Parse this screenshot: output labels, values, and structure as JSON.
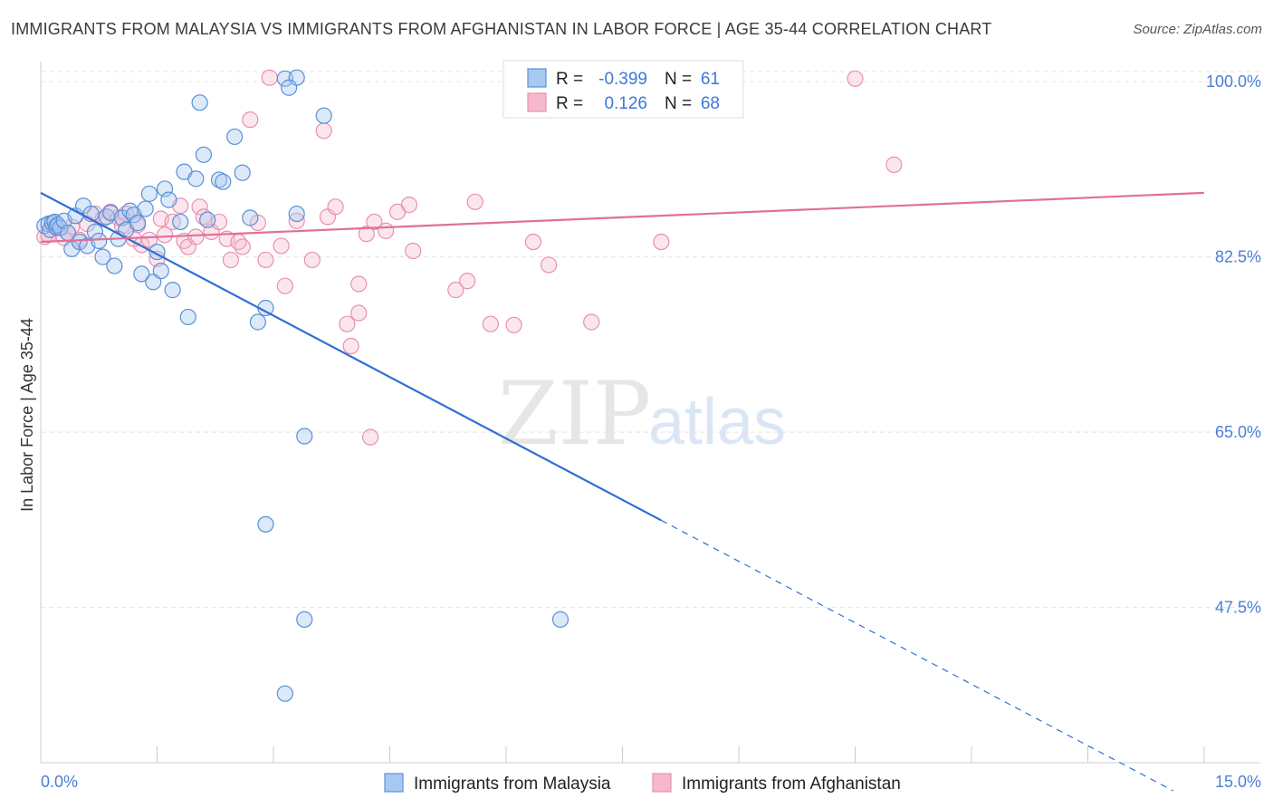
{
  "header": {
    "title": "IMMIGRANTS FROM MALAYSIA VS IMMIGRANTS FROM AFGHANISTAN IN LABOR FORCE | AGE 35-44 CORRELATION CHART",
    "source": "Source: ZipAtlas.com"
  },
  "watermark": {
    "zip": "ZIP",
    "atlas": "atlas"
  },
  "legend": {
    "malaysia": {
      "r_label": "R =",
      "r_value": "-0.399",
      "n_label": "N =",
      "n_value": "61"
    },
    "afghanistan": {
      "r_label": "R =",
      "r_value": "0.126",
      "n_label": "N =",
      "n_value": "68"
    }
  },
  "chart_data": {
    "type": "scatter",
    "ylabel": "In Labor Force | Age 35-44",
    "xlim": [
      0,
      15
    ],
    "ylim": [
      32,
      102
    ],
    "x_tick_labels": [
      "0.0%",
      "15.0%"
    ],
    "y_ticks": [
      {
        "value": 100,
        "label": "100.0%"
      },
      {
        "value": 82.5,
        "label": "82.5%"
      },
      {
        "value": 65,
        "label": "65.0%"
      },
      {
        "value": 47.5,
        "label": "47.5%"
      }
    ],
    "colors": {
      "malaysia_fill": "#a8c8f0",
      "malaysia_stroke": "#5b8fd8",
      "malaysia_line": "#2f6fd6",
      "afghanistan_fill": "#f5b8cc",
      "afghanistan_stroke": "#e890ad",
      "afghanistan_line": "#e0709a"
    },
    "series": [
      {
        "name": "Immigrants from Malaysia",
        "points": [
          [
            0.05,
            85.6
          ],
          [
            0.1,
            85.8
          ],
          [
            0.12,
            85.2
          ],
          [
            0.15,
            85.9
          ],
          [
            0.18,
            86.0
          ],
          [
            0.2,
            85.5
          ],
          [
            0.22,
            85.7
          ],
          [
            0.25,
            85.4
          ],
          [
            0.3,
            86.1
          ],
          [
            0.35,
            84.9
          ],
          [
            0.4,
            83.3
          ],
          [
            0.45,
            86.6
          ],
          [
            0.5,
            84.0
          ],
          [
            0.55,
            87.6
          ],
          [
            0.6,
            83.6
          ],
          [
            0.65,
            86.8
          ],
          [
            0.7,
            85.0
          ],
          [
            0.75,
            84.1
          ],
          [
            0.8,
            82.5
          ],
          [
            0.85,
            86.5
          ],
          [
            0.9,
            86.9
          ],
          [
            0.95,
            81.6
          ],
          [
            1.0,
            84.3
          ],
          [
            1.05,
            86.4
          ],
          [
            1.1,
            85.2
          ],
          [
            1.15,
            87.1
          ],
          [
            1.2,
            86.7
          ],
          [
            1.25,
            85.9
          ],
          [
            1.3,
            80.8
          ],
          [
            1.35,
            87.3
          ],
          [
            1.4,
            88.8
          ],
          [
            1.45,
            80.0
          ],
          [
            1.5,
            83.0
          ],
          [
            1.55,
            81.1
          ],
          [
            1.6,
            89.3
          ],
          [
            1.65,
            88.2
          ],
          [
            1.7,
            79.2
          ],
          [
            1.8,
            86.0
          ],
          [
            1.85,
            91.0
          ],
          [
            1.9,
            76.5
          ],
          [
            2.0,
            90.3
          ],
          [
            2.05,
            97.9
          ],
          [
            2.1,
            92.7
          ],
          [
            2.15,
            86.2
          ],
          [
            2.3,
            90.2
          ],
          [
            2.35,
            90.0
          ],
          [
            2.5,
            94.5
          ],
          [
            2.6,
            90.9
          ],
          [
            2.7,
            86.4
          ],
          [
            2.8,
            76.0
          ],
          [
            2.9,
            77.4
          ],
          [
            2.9,
            55.8
          ],
          [
            3.15,
            100.3
          ],
          [
            3.3,
            100.4
          ],
          [
            3.15,
            38.9
          ],
          [
            3.2,
            99.4
          ],
          [
            3.3,
            86.8
          ],
          [
            3.65,
            96.6
          ],
          [
            3.4,
            64.6
          ],
          [
            3.4,
            46.3
          ],
          [
            6.7,
            46.3
          ]
        ]
      },
      {
        "name": "Immigrants from Afghanistan",
        "points": [
          [
            0.05,
            84.5
          ],
          [
            0.1,
            84.7
          ],
          [
            0.15,
            85.9
          ],
          [
            0.2,
            85.4
          ],
          [
            0.3,
            84.4
          ],
          [
            0.35,
            84.9
          ],
          [
            0.4,
            85.5
          ],
          [
            0.5,
            84.2
          ],
          [
            0.6,
            85.8
          ],
          [
            0.7,
            86.8
          ],
          [
            0.8,
            86.3
          ],
          [
            0.9,
            87.0
          ],
          [
            1.0,
            86.4
          ],
          [
            1.05,
            85.6
          ],
          [
            1.1,
            86.8
          ],
          [
            1.2,
            84.3
          ],
          [
            1.25,
            85.7
          ],
          [
            1.3,
            83.7
          ],
          [
            1.4,
            84.2
          ],
          [
            1.5,
            82.3
          ],
          [
            1.55,
            86.3
          ],
          [
            1.6,
            84.7
          ],
          [
            1.7,
            86.0
          ],
          [
            1.8,
            87.6
          ],
          [
            1.85,
            84.1
          ],
          [
            1.9,
            83.5
          ],
          [
            2.0,
            84.5
          ],
          [
            2.05,
            87.5
          ],
          [
            2.1,
            86.5
          ],
          [
            2.2,
            85.0
          ],
          [
            2.3,
            86.0
          ],
          [
            2.4,
            84.3
          ],
          [
            2.45,
            82.2
          ],
          [
            2.55,
            84.0
          ],
          [
            2.6,
            83.5
          ],
          [
            2.7,
            96.2
          ],
          [
            2.8,
            85.9
          ],
          [
            2.9,
            82.2
          ],
          [
            2.95,
            100.4
          ],
          [
            3.1,
            83.6
          ],
          [
            3.15,
            79.6
          ],
          [
            3.3,
            86.1
          ],
          [
            3.5,
            82.2
          ],
          [
            3.65,
            95.1
          ],
          [
            3.7,
            86.5
          ],
          [
            3.8,
            87.5
          ],
          [
            3.95,
            75.8
          ],
          [
            4.0,
            73.6
          ],
          [
            4.1,
            79.8
          ],
          [
            4.1,
            76.9
          ],
          [
            4.2,
            84.8
          ],
          [
            4.25,
            64.5
          ],
          [
            4.3,
            86.0
          ],
          [
            4.45,
            85.1
          ],
          [
            4.6,
            87.0
          ],
          [
            4.75,
            87.7
          ],
          [
            4.8,
            83.1
          ],
          [
            5.35,
            79.2
          ],
          [
            5.5,
            80.1
          ],
          [
            5.6,
            88.0
          ],
          [
            5.8,
            75.8
          ],
          [
            6.1,
            75.7
          ],
          [
            6.35,
            84.0
          ],
          [
            6.55,
            81.7
          ],
          [
            7.1,
            76.0
          ],
          [
            8.0,
            84.0
          ],
          [
            10.5,
            100.3
          ],
          [
            11.0,
            91.7
          ]
        ]
      }
    ],
    "trendlines": [
      {
        "series": "Immigrants from Malaysia",
        "x": [
          0,
          8.0
        ],
        "y": [
          88.9,
          56.2
        ],
        "extension_x": [
          8.0,
          14.6
        ],
        "extension_y": [
          56.2,
          29.2
        ]
      },
      {
        "series": "Immigrants from Afghanistan",
        "x": [
          0,
          15
        ],
        "y": [
          84.0,
          88.9
        ]
      }
    ]
  }
}
